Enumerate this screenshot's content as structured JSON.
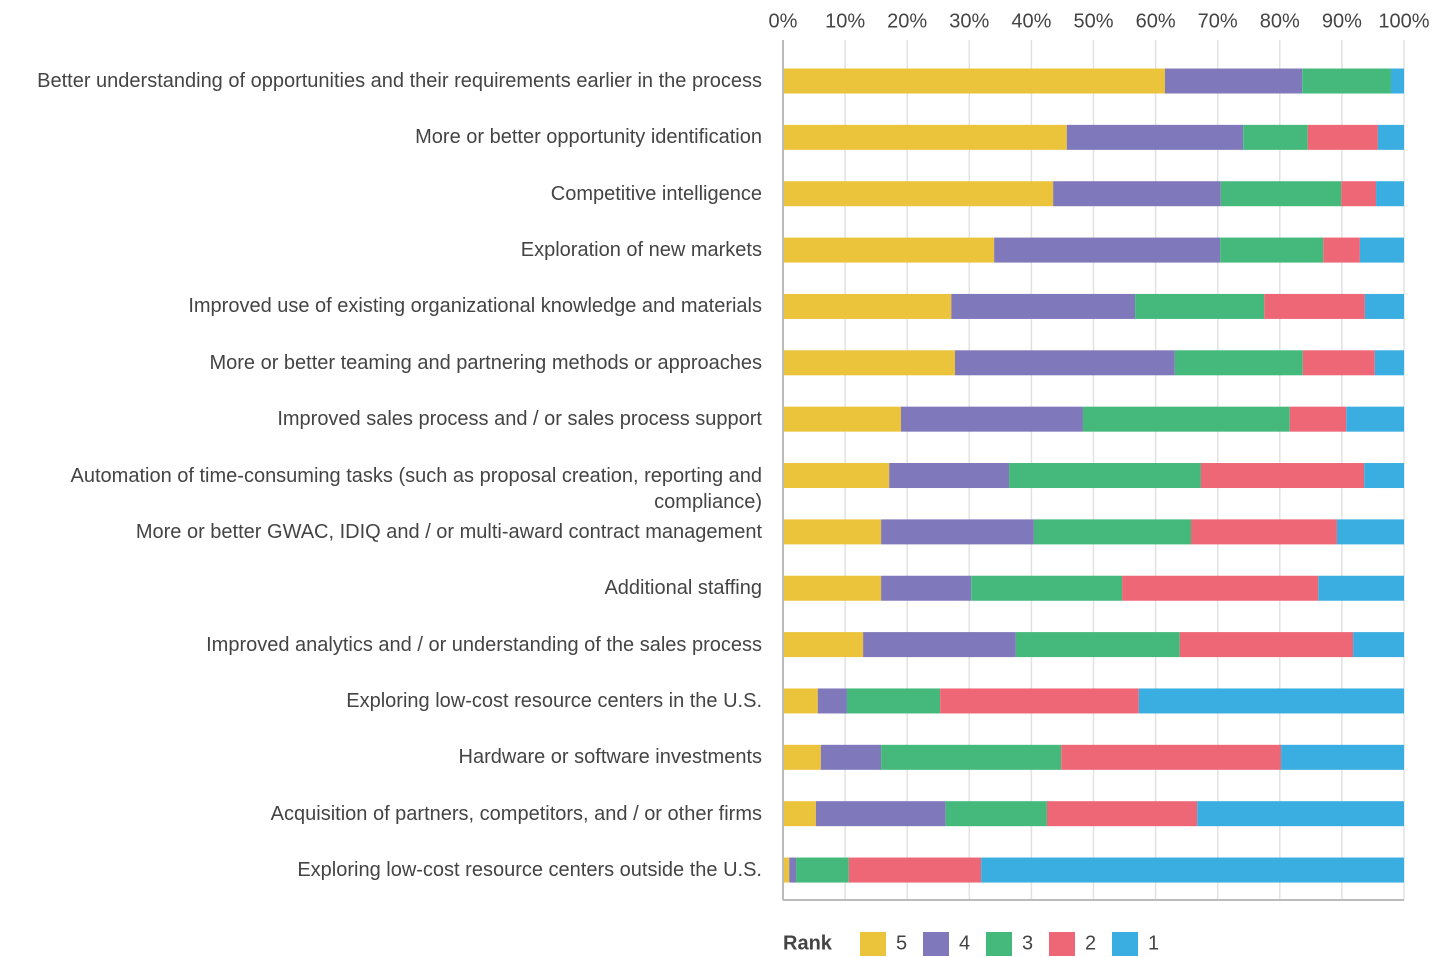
{
  "chart_data": {
    "type": "bar",
    "orientation": "horizontal",
    "stacked": true,
    "categories": [
      "Better understanding of opportunities and their requirements earlier in the process",
      "More or better opportunity identification",
      "Competitive intelligence",
      "Exploration of new markets",
      "Improved use of existing organizational knowledge and materials",
      "More or better teaming and partnering methods or approaches",
      "Improved sales process and / or sales process support",
      "Automation of time-consuming tasks (such as proposal creation, reporting and compliance)",
      "More or better GWAC, IDIQ and / or multi-award contract management",
      "Additional staffing",
      "Improved analytics and / or understanding of the sales process",
      "Exploring low-cost resource centers in the U.S.",
      "Hardware or software investments",
      "Acquisition of partners, competitors, and / or other firms",
      "Exploring low-cost resource centers outside the U.S."
    ],
    "series": [
      {
        "name": "5",
        "color": "#ecc43c",
        "values": [
          61.5,
          45.7,
          43.5,
          34.0,
          27.1,
          27.7,
          19.0,
          17.1,
          15.8,
          15.8,
          12.9,
          5.6,
          6.1,
          5.3,
          1.0
        ]
      },
      {
        "name": "4",
        "color": "#7f79bc",
        "values": [
          22.1,
          28.4,
          27.0,
          36.4,
          29.6,
          35.4,
          29.3,
          19.3,
          24.6,
          14.5,
          24.6,
          4.7,
          9.7,
          20.9,
          1.1
        ]
      },
      {
        "name": "3",
        "color": "#45b97c",
        "values": [
          14.3,
          10.4,
          19.4,
          16.6,
          20.8,
          20.6,
          33.3,
          30.9,
          25.3,
          24.3,
          26.4,
          15.0,
          29.0,
          16.3,
          8.5
        ]
      },
      {
        "name": "2",
        "color": "#ee6776",
        "values": [
          0,
          11.3,
          5.6,
          5.9,
          16.2,
          11.6,
          9.1,
          26.3,
          23.5,
          31.6,
          27.9,
          32.0,
          35.4,
          24.2,
          21.3
        ]
      },
      {
        "name": "1",
        "color": "#3aaee0",
        "values": [
          2.1,
          4.2,
          4.5,
          7.1,
          6.3,
          4.7,
          9.3,
          6.4,
          10.8,
          13.8,
          8.2,
          42.7,
          19.8,
          33.3,
          68.1
        ]
      }
    ],
    "xlim": [
      0,
      100
    ],
    "xticks": [
      {
        "value": 0,
        "label": "0%"
      },
      {
        "value": 10,
        "label": "10%"
      },
      {
        "value": 20,
        "label": "20%"
      },
      {
        "value": 30,
        "label": "30%"
      },
      {
        "value": 40,
        "label": "40%"
      },
      {
        "value": 50,
        "label": "50%"
      },
      {
        "value": 60,
        "label": "60%"
      },
      {
        "value": 70,
        "label": "70%"
      },
      {
        "value": 80,
        "label": "80%"
      },
      {
        "value": 90,
        "label": "90%"
      },
      {
        "value": 100,
        "label": "100%"
      }
    ],
    "grid": true,
    "legend_title": "Rank",
    "legend_position": "bottom"
  }
}
